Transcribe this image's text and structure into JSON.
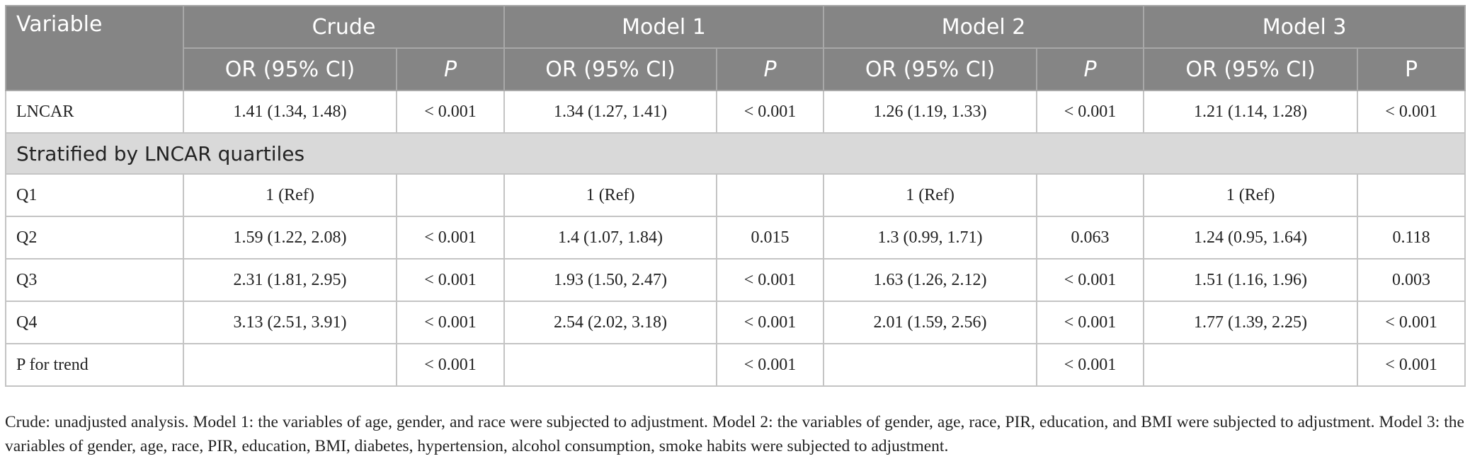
{
  "table": {
    "header": {
      "groups": [
        "Variable",
        "Crude",
        "Model 1",
        "Model 2",
        "Model 3"
      ],
      "subheaders": [
        "OR (95% CI)",
        "P",
        "OR (95% CI)",
        "P",
        "OR (95% CI)",
        "P",
        "OR (95% CI)",
        "P"
      ]
    },
    "rows": [
      [
        "LNCAR",
        "1.41 (1.34, 1.48)",
        "< 0.001",
        "1.34 (1.27, 1.41)",
        "< 0.001",
        "1.26 (1.19, 1.33)",
        "< 0.001",
        "1.21 (1.14, 1.28)",
        "< 0.001"
      ]
    ],
    "section": "Stratified by LNCAR quartiles",
    "stratified_rows": [
      [
        "Q1",
        "1 (Ref)",
        null,
        "1 (Ref)",
        null,
        "1 (Ref)",
        null,
        "1 (Ref)",
        null
      ],
      [
        "Q2",
        "1.59 (1.22, 2.08)",
        "< 0.001",
        "1.4 (1.07, 1.84)",
        "0.015",
        "1.3 (0.99, 1.71)",
        "0.063",
        "1.24 (0.95, 1.64)",
        "0.118"
      ],
      [
        "Q3",
        "2.31 (1.81, 2.95)",
        "< 0.001",
        "1.93 (1.50, 2.47)",
        "< 0.001",
        "1.63 (1.26, 2.12)",
        "< 0.001",
        "1.51 (1.16, 1.96)",
        "0.003"
      ],
      [
        "Q4",
        "3.13 (2.51, 3.91)",
        "< 0.001",
        "2.54 (2.02, 3.18)",
        "< 0.001",
        "2.01 (1.59, 2.56)",
        "< 0.001",
        "1.77 (1.39, 2.25)",
        "< 0.001"
      ],
      [
        "P for trend",
        null,
        "< 0.001",
        null,
        "< 0.001",
        null,
        "< 0.001",
        null,
        "< 0.001"
      ]
    ],
    "footnote": "Crude: unadjusted analysis. Model 1: the variables of age, gender, and race were subjected to adjustment. Model 2: the variables of gender, age, race, PIR, education, and BMI were subjected to adjustment. Model 3: the variables of gender, age, race, PIR, education, BMI, diabetes, hypertension, alcohol consumption, smoke habits were subjected to adjustment."
  }
}
